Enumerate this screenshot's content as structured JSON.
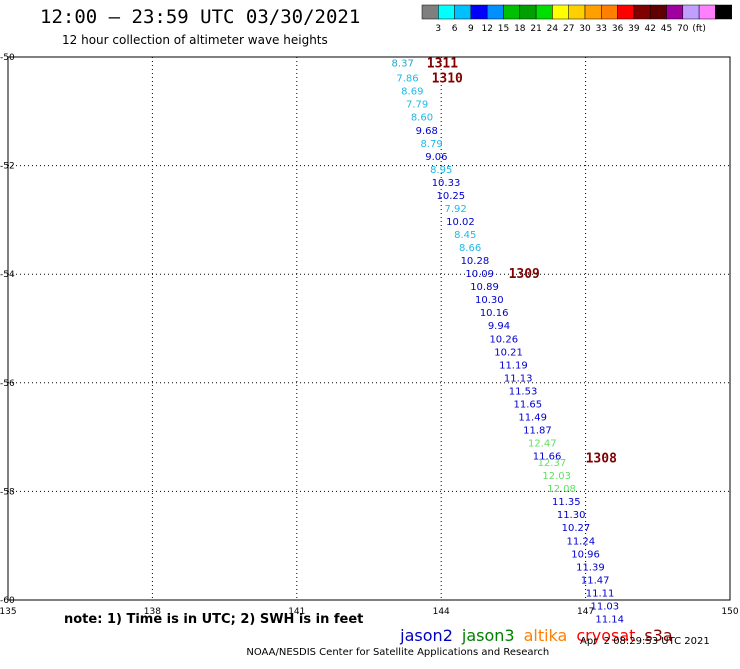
{
  "header": {
    "title": "12:00 – 23:59 UTC 03/30/2021",
    "subtitle": "12 hour collection of altimeter wave heights"
  },
  "colorbar": {
    "colors": [
      "#7f7f7f",
      "#00ffff",
      "#00c0ff",
      "#0000ff",
      "#0090ff",
      "#00c000",
      "#00a000",
      "#00e000",
      "#ffff00",
      "#ffd000",
      "#ffa000",
      "#ff8000",
      "#ff0000",
      "#800000",
      "#600000",
      "#a000a0",
      "#c0a0ff",
      "#ff80ff",
      "#000000"
    ],
    "labels": [
      "3",
      "6",
      "9",
      "12",
      "15",
      "18",
      "21",
      "24",
      "27",
      "30",
      "33",
      "36",
      "39",
      "42",
      "45",
      "70",
      "(ft)"
    ]
  },
  "chart_data": {
    "type": "scatter",
    "title": "12:00 – 23:59 UTC 03/30/2021",
    "subtitle": "12 hour collection of altimeter wave heights",
    "xlim": [
      135,
      150
    ],
    "ylim": [
      -60,
      -50
    ],
    "x_ticks": [
      "135",
      "138",
      "141",
      "144",
      "147",
      "150"
    ],
    "y_ticks": [
      "-50",
      "-52",
      "-54",
      "-56",
      "-58",
      "-60"
    ],
    "grid": "dotted",
    "points": [
      {
        "lon": 143.2,
        "lat": -50.1,
        "label": "8.37",
        "color": "#20a8c8"
      },
      {
        "lon": 143.3,
        "lat": -50.38,
        "label": "7.86",
        "color": "#20b8e8"
      },
      {
        "lon": 143.4,
        "lat": -50.62,
        "label": "8.69",
        "color": "#20b8e8"
      },
      {
        "lon": 143.5,
        "lat": -50.86,
        "label": "7.79",
        "color": "#20b8e8"
      },
      {
        "lon": 143.6,
        "lat": -51.1,
        "label": "8.60",
        "color": "#20b8e8"
      },
      {
        "lon": 143.7,
        "lat": -51.34,
        "label": "9.68",
        "color": "#0000d0"
      },
      {
        "lon": 143.8,
        "lat": -51.58,
        "label": "8.79",
        "color": "#20b8e8"
      },
      {
        "lon": 143.9,
        "lat": -51.82,
        "label": "9.06",
        "color": "#0000d0"
      },
      {
        "lon": 144.0,
        "lat": -52.06,
        "label": "8.95",
        "color": "#20b8e8"
      },
      {
        "lon": 144.1,
        "lat": -52.3,
        "label": "10.33",
        "color": "#0000d0"
      },
      {
        "lon": 144.2,
        "lat": -52.54,
        "label": "10.25",
        "color": "#0000d0"
      },
      {
        "lon": 144.3,
        "lat": -52.78,
        "label": "7.92",
        "color": "#20b8e8"
      },
      {
        "lon": 144.4,
        "lat": -53.02,
        "label": "10.02",
        "color": "#0000d0"
      },
      {
        "lon": 144.5,
        "lat": -53.26,
        "label": "8.45",
        "color": "#20b8e8"
      },
      {
        "lon": 144.6,
        "lat": -53.5,
        "label": "8.66",
        "color": "#20b8e8"
      },
      {
        "lon": 144.7,
        "lat": -53.74,
        "label": "10.28",
        "color": "#0000d0"
      },
      {
        "lon": 144.8,
        "lat": -53.98,
        "label": "10.09",
        "color": "#0000d0"
      },
      {
        "lon": 144.9,
        "lat": -54.22,
        "label": "10.89",
        "color": "#0000d0"
      },
      {
        "lon": 145.0,
        "lat": -54.46,
        "label": "10.30",
        "color": "#0000d0"
      },
      {
        "lon": 145.1,
        "lat": -54.7,
        "label": "10.16",
        "color": "#0000d0"
      },
      {
        "lon": 145.2,
        "lat": -54.94,
        "label": "9.94",
        "color": "#0000d0"
      },
      {
        "lon": 145.3,
        "lat": -55.18,
        "label": "10.26",
        "color": "#0000d0"
      },
      {
        "lon": 145.4,
        "lat": -55.42,
        "label": "10.21",
        "color": "#0000d0"
      },
      {
        "lon": 145.5,
        "lat": -55.66,
        "label": "11.19",
        "color": "#0000d0"
      },
      {
        "lon": 145.6,
        "lat": -55.9,
        "label": "11.13",
        "color": "#0000d0"
      },
      {
        "lon": 145.7,
        "lat": -56.14,
        "label": "11.53",
        "color": "#0000d0"
      },
      {
        "lon": 145.8,
        "lat": -56.38,
        "label": "11.65",
        "color": "#0000d0"
      },
      {
        "lon": 145.9,
        "lat": -56.62,
        "label": "11.49",
        "color": "#0000d0"
      },
      {
        "lon": 146.0,
        "lat": -56.86,
        "label": "11.87",
        "color": "#0000d0"
      },
      {
        "lon": 146.1,
        "lat": -57.1,
        "label": "12.47",
        "color": "#60e060"
      },
      {
        "lon": 146.2,
        "lat": -57.34,
        "label": "11.66",
        "color": "#0000d0"
      },
      {
        "lon": 146.3,
        "lat": -57.46,
        "label": "12.37",
        "color": "#60e060"
      },
      {
        "lon": 146.4,
        "lat": -57.7,
        "label": "12.03",
        "color": "#60e060"
      },
      {
        "lon": 146.5,
        "lat": -57.94,
        "label": "12.08",
        "color": "#60e060"
      },
      {
        "lon": 146.6,
        "lat": -58.18,
        "label": "11.35",
        "color": "#0000d0"
      },
      {
        "lon": 146.7,
        "lat": -58.42,
        "label": "11.30",
        "color": "#0000d0"
      },
      {
        "lon": 146.8,
        "lat": -58.66,
        "label": "10.27",
        "color": "#0000d0"
      },
      {
        "lon": 146.9,
        "lat": -58.9,
        "label": "11.24",
        "color": "#0000d0"
      },
      {
        "lon": 147.0,
        "lat": -59.14,
        "label": "10.96",
        "color": "#0000d0"
      },
      {
        "lon": 147.1,
        "lat": -59.38,
        "label": "11.39",
        "color": "#0000d0"
      },
      {
        "lon": 147.2,
        "lat": -59.62,
        "label": "11.47",
        "color": "#0000d0"
      },
      {
        "lon": 147.3,
        "lat": -59.86,
        "label": "11.11",
        "color": "#0000d0"
      },
      {
        "lon": 147.4,
        "lat": -60.1,
        "label": "11.03",
        "color": "#0000d0"
      },
      {
        "lon": 147.5,
        "lat": -60.34,
        "label": "11.14",
        "color": "#0000d0"
      }
    ],
    "annotations": [
      {
        "text": "1311",
        "lon": 143.7,
        "lat": -50.1
      },
      {
        "text": "1310",
        "lon": 143.8,
        "lat": -50.38
      },
      {
        "text": "1309",
        "lon": 145.4,
        "lat": -53.98
      },
      {
        "text": "1308",
        "lon": 147.0,
        "lat": -57.38
      }
    ]
  },
  "note": "note: 1) Time is in UTC; 2) SWH is in feet",
  "legend": [
    {
      "label": "jason2",
      "color": "#0000c0"
    },
    {
      "label": "jason3",
      "color": "#008000"
    },
    {
      "label": "altika",
      "color": "#ff8000"
    },
    {
      "label": "cryosat",
      "color": "#ff0000"
    },
    {
      "label": "s3a",
      "color": "#800000"
    }
  ],
  "footer": {
    "credit": "NOAA/NESDIS Center for Satellite Applications and Research",
    "timestamp": "Apr  2 08:29:53 UTC 2021"
  }
}
